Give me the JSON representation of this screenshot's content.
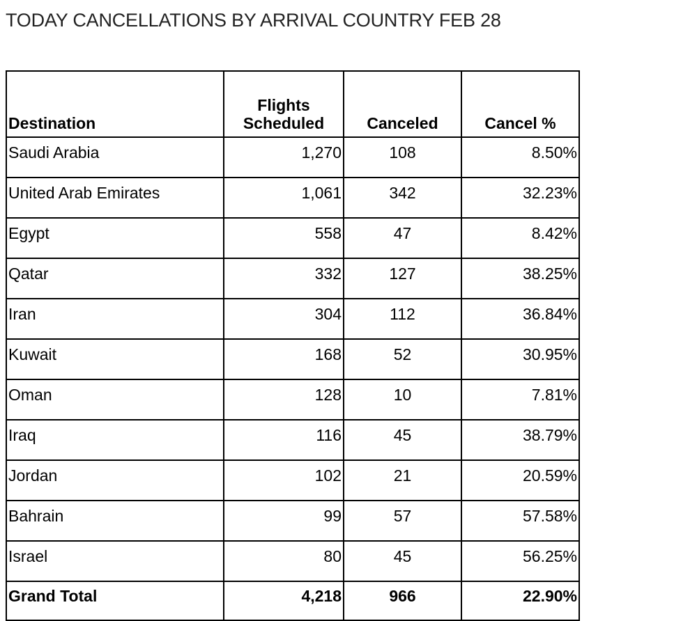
{
  "title": "TODAY CANCELLATIONS BY ARRIVAL COUNTRY FEB 28",
  "chart_data": {
    "type": "table",
    "title": "TODAY CANCELLATIONS BY ARRIVAL COUNTRY FEB 28",
    "columns": {
      "destination": "Destination",
      "scheduled_line1": "Flights",
      "scheduled_line2": "Scheduled",
      "canceled": "Canceled",
      "cancel_pct": "Cancel %"
    },
    "rows": [
      {
        "destination": "Saudi Arabia",
        "scheduled": "1,270",
        "canceled": "108",
        "cancel_pct": "8.50%"
      },
      {
        "destination": "United Arab Emirates",
        "scheduled": "1,061",
        "canceled": "342",
        "cancel_pct": "32.23%"
      },
      {
        "destination": "Egypt",
        "scheduled": "558",
        "canceled": "47",
        "cancel_pct": "8.42%"
      },
      {
        "destination": "Qatar",
        "scheduled": "332",
        "canceled": "127",
        "cancel_pct": "38.25%"
      },
      {
        "destination": "Iran",
        "scheduled": "304",
        "canceled": "112",
        "cancel_pct": "36.84%"
      },
      {
        "destination": "Kuwait",
        "scheduled": "168",
        "canceled": "52",
        "cancel_pct": "30.95%"
      },
      {
        "destination": "Oman",
        "scheduled": "128",
        "canceled": "10",
        "cancel_pct": "7.81%"
      },
      {
        "destination": "Iraq",
        "scheduled": "116",
        "canceled": "45",
        "cancel_pct": "38.79%"
      },
      {
        "destination": "Jordan",
        "scheduled": "102",
        "canceled": "21",
        "cancel_pct": "20.59%"
      },
      {
        "destination": "Bahrain",
        "scheduled": "99",
        "canceled": "57",
        "cancel_pct": "57.58%"
      },
      {
        "destination": "Israel",
        "scheduled": "80",
        "canceled": "45",
        "cancel_pct": "56.25%"
      }
    ],
    "total": {
      "destination": "Grand Total",
      "scheduled": "4,218",
      "canceled": "966",
      "cancel_pct": "22.90%"
    }
  }
}
